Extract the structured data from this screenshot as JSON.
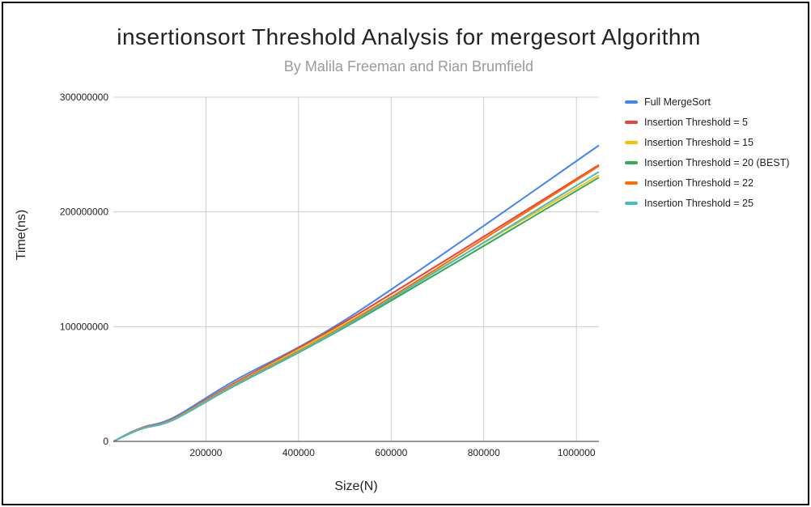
{
  "chart_data": {
    "type": "line",
    "title": "insertionsort Threshold Analysis for mergesort Algorithm",
    "subtitle": "By Malila Freeman and Rian Brumfield",
    "xlabel": "Size(N)",
    "ylabel": "Time(ns)",
    "xlim": [
      0,
      1048576
    ],
    "ylim": [
      0,
      300000000
    ],
    "xticks": [
      200000,
      400000,
      600000,
      800000,
      1000000
    ],
    "yticks": [
      0,
      100000000,
      200000000,
      300000000
    ],
    "grid": true,
    "legend_position": "right",
    "x": [
      1024,
      32768,
      65536,
      131072,
      262144,
      524288,
      1048576
    ],
    "series": [
      {
        "name": "Full MergeSort",
        "color": "#4285f4",
        "values": [
          100000,
          7000000,
          12500000,
          21000000,
          53000000,
          112000000,
          258000000
        ]
      },
      {
        "name": "Insertion Threshold = 5",
        "color": "#ea4335",
        "values": [
          100000,
          6800000,
          12200000,
          20000000,
          51000000,
          110000000,
          241000000
        ]
      },
      {
        "name": "Insertion Threshold = 15",
        "color": "#fbbc04",
        "values": [
          100000,
          6500000,
          11800000,
          19500000,
          50000000,
          108000000,
          232000000
        ]
      },
      {
        "name": "Insertion Threshold = 20 (BEST)",
        "color": "#34a853",
        "values": [
          100000,
          6300000,
          11500000,
          19000000,
          48500000,
          105000000,
          230000000
        ]
      },
      {
        "name": "Insertion Threshold = 22",
        "color": "#ff6d01",
        "values": [
          100000,
          6400000,
          11700000,
          19200000,
          49500000,
          107000000,
          240000000
        ]
      },
      {
        "name": "Insertion Threshold = 25",
        "color": "#46bdc6",
        "values": [
          100000,
          6400000,
          11600000,
          19100000,
          49000000,
          106000000,
          235000000
        ]
      }
    ]
  }
}
